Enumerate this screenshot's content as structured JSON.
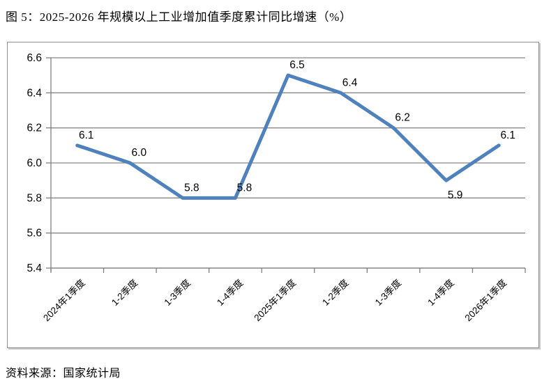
{
  "page": {
    "caption": "图 5：2025-2026 年规模以上工业增加值季度累计同比增速（%）",
    "source_note": "资料来源：国家统计局"
  },
  "chart_data": {
    "type": "line",
    "title": "图 5：2025-2026 年规模以上工业增加值季度累计同比增速（%）",
    "categories": [
      "2024年1季度",
      "1-2季度",
      "1-3季度",
      "1-4季度",
      "2025年1季度",
      "1-2季度",
      "1-3季度",
      "1-4季度",
      "2026年1季度"
    ],
    "values": [
      6.1,
      6.0,
      5.8,
      5.8,
      6.5,
      6.4,
      6.2,
      5.9,
      6.1
    ],
    "data_labels": [
      "6.1",
      "6.0",
      "5.8",
      "5.8",
      "6.5",
      "6.4",
      "6.2",
      "5.9",
      "6.1"
    ],
    "label_positions": [
      "above",
      "above",
      "above",
      "above",
      "above",
      "above",
      "above",
      "below",
      "above"
    ],
    "xlabel": "",
    "ylabel": "",
    "ylim": [
      5.4,
      6.6
    ],
    "ytick_step": 0.2,
    "ytick_labels": [
      "5.4",
      "5.6",
      "5.8",
      "6.0",
      "6.2",
      "6.4",
      "6.6"
    ],
    "grid": true,
    "legend": "none",
    "line_color": "#4F81BD",
    "grid_color": "#888888",
    "axis_color": "#7f7f7f",
    "text_color": "#000000"
  }
}
